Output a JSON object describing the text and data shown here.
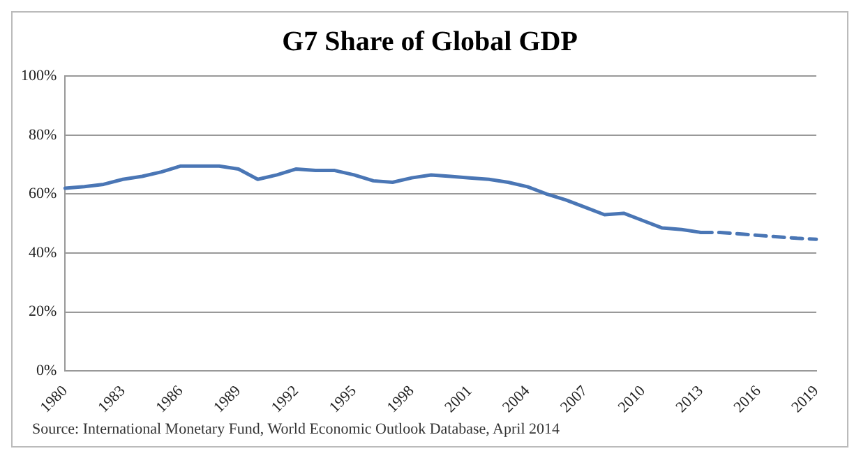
{
  "chart_data": {
    "type": "line",
    "title": "G7 Share of Global GDP",
    "categories": [
      "1980",
      null,
      null,
      "1983",
      null,
      null,
      "1986",
      null,
      null,
      "1989",
      null,
      null,
      "1992",
      null,
      null,
      "1995",
      null,
      null,
      "1998",
      null,
      null,
      "2001",
      null,
      null,
      "2004",
      null,
      null,
      "2007",
      null,
      null,
      "2010",
      null,
      null,
      "2013",
      null,
      null,
      "2016",
      null,
      null,
      "2019"
    ],
    "series": [
      {
        "color": "#4a76b5",
        "line_style": "solid",
        "values": [
          62,
          62.5,
          63.3,
          65,
          66,
          67.5,
          69.5,
          69.5,
          69.5,
          68.5,
          65,
          66.5,
          68.5,
          68,
          68,
          66.5,
          64.5,
          64,
          65.5,
          66.5,
          66,
          65.5,
          65,
          64,
          62.5,
          60,
          58,
          55.5,
          53,
          53.5,
          51,
          48.5,
          48,
          47,
          null,
          null,
          null,
          null,
          null,
          null
        ]
      },
      {
        "color": "#4a76b5",
        "line_style": "dashed",
        "values": [
          null,
          null,
          null,
          null,
          null,
          null,
          null,
          null,
          null,
          null,
          null,
          null,
          null,
          null,
          null,
          null,
          null,
          null,
          null,
          null,
          null,
          null,
          null,
          null,
          null,
          null,
          null,
          null,
          null,
          null,
          null,
          null,
          null,
          47,
          47,
          46.5,
          46,
          45.5,
          45,
          44.7
        ]
      }
    ],
    "ylim": [
      0,
      100
    ],
    "yticks": [
      {
        "value": 0,
        "label": "0%"
      },
      {
        "value": 20,
        "label": "20%"
      },
      {
        "value": 40,
        "label": "40%"
      },
      {
        "value": 60,
        "label": "60%"
      },
      {
        "value": 80,
        "label": "80%"
      },
      {
        "value": 100,
        "label": "100%"
      }
    ],
    "grid": "y",
    "legend": false,
    "marker": "none",
    "annotations": [
      "Source: International Monetary Fund, World Economic Outlook Database, April 2014"
    ]
  }
}
